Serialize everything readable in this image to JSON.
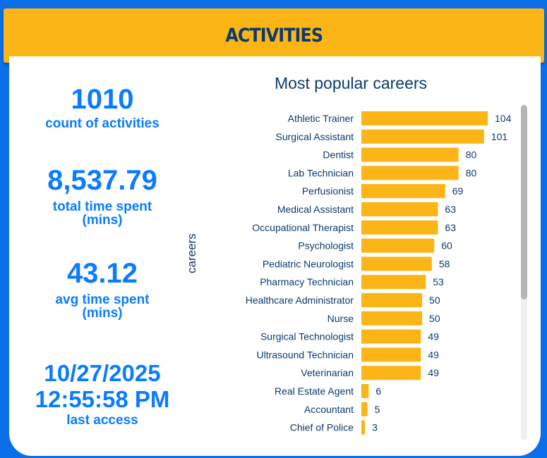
{
  "header": {
    "title": "ACTIVITIES"
  },
  "kpis": [
    {
      "value": "1010",
      "label": "count of activities"
    },
    {
      "value": "8,537.79",
      "label": "total time spent",
      "label2": "(mins)"
    },
    {
      "value": "43.12",
      "label": "avg time spent",
      "label2": "(mins)"
    },
    {
      "value": "10/27/2025",
      "value2": "12:55:58 PM",
      "label": "last access"
    }
  ],
  "colors": {
    "background": "#0a6fe8",
    "header": "#fbb516",
    "bar": "#fbb516",
    "kpi": "#0a7cff",
    "text": "#0d3a6e"
  },
  "chart_data": {
    "type": "bar",
    "orientation": "horizontal",
    "title": "Most popular careers",
    "ylabel": "careers",
    "xlabel": "",
    "categories": [
      "Athletic Trainer",
      "Surgical Assistant",
      "Dentist",
      "Lab Technician",
      "Perfusionist",
      "Medical Assistant",
      "Occupational Therapist",
      "Psychologist",
      "Pediatric Neurologist",
      "Pharmacy Technician",
      "Healthcare Administrator",
      "Nurse",
      "Surgical Technologist",
      "Ultrasound Technician",
      "Veterinarian",
      "Real Estate Agent",
      "Accountant",
      "Chief of Police"
    ],
    "values": [
      104,
      101,
      80,
      80,
      69,
      63,
      63,
      60,
      58,
      53,
      50,
      50,
      49,
      49,
      49,
      6,
      5,
      3
    ],
    "data_labels": true,
    "grid": false
  }
}
